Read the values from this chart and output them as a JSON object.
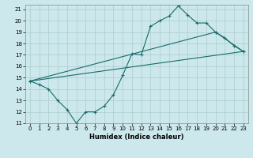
{
  "xlabel": "Humidex (Indice chaleur)",
  "xlim": [
    -0.5,
    23.5
  ],
  "ylim": [
    11,
    21.4
  ],
  "yticks": [
    11,
    12,
    13,
    14,
    15,
    16,
    17,
    18,
    19,
    20,
    21
  ],
  "xticks": [
    0,
    1,
    2,
    3,
    4,
    5,
    6,
    7,
    8,
    9,
    10,
    11,
    12,
    13,
    14,
    15,
    16,
    17,
    18,
    19,
    20,
    21,
    22,
    23
  ],
  "bg_color": "#cce8ec",
  "grid_color": "#aacccc",
  "line_color": "#1a6b6b",
  "line1_x": [
    0,
    1,
    2,
    3,
    4,
    5,
    6,
    7,
    8,
    9,
    10,
    11,
    12,
    13,
    14,
    15,
    16,
    17,
    18,
    19,
    20,
    21,
    22,
    23
  ],
  "line1_y": [
    14.7,
    14.4,
    14.0,
    13.0,
    12.2,
    11.0,
    12.0,
    12.0,
    12.5,
    13.5,
    15.2,
    17.1,
    17.0,
    19.5,
    20.0,
    20.4,
    21.3,
    20.5,
    19.8,
    19.8,
    19.0,
    18.5,
    17.8,
    17.3
  ],
  "line2_x": [
    0,
    20,
    23
  ],
  "line2_y": [
    14.7,
    19.0,
    17.3
  ],
  "line3_x": [
    0,
    23
  ],
  "line3_y": [
    14.7,
    17.3
  ]
}
